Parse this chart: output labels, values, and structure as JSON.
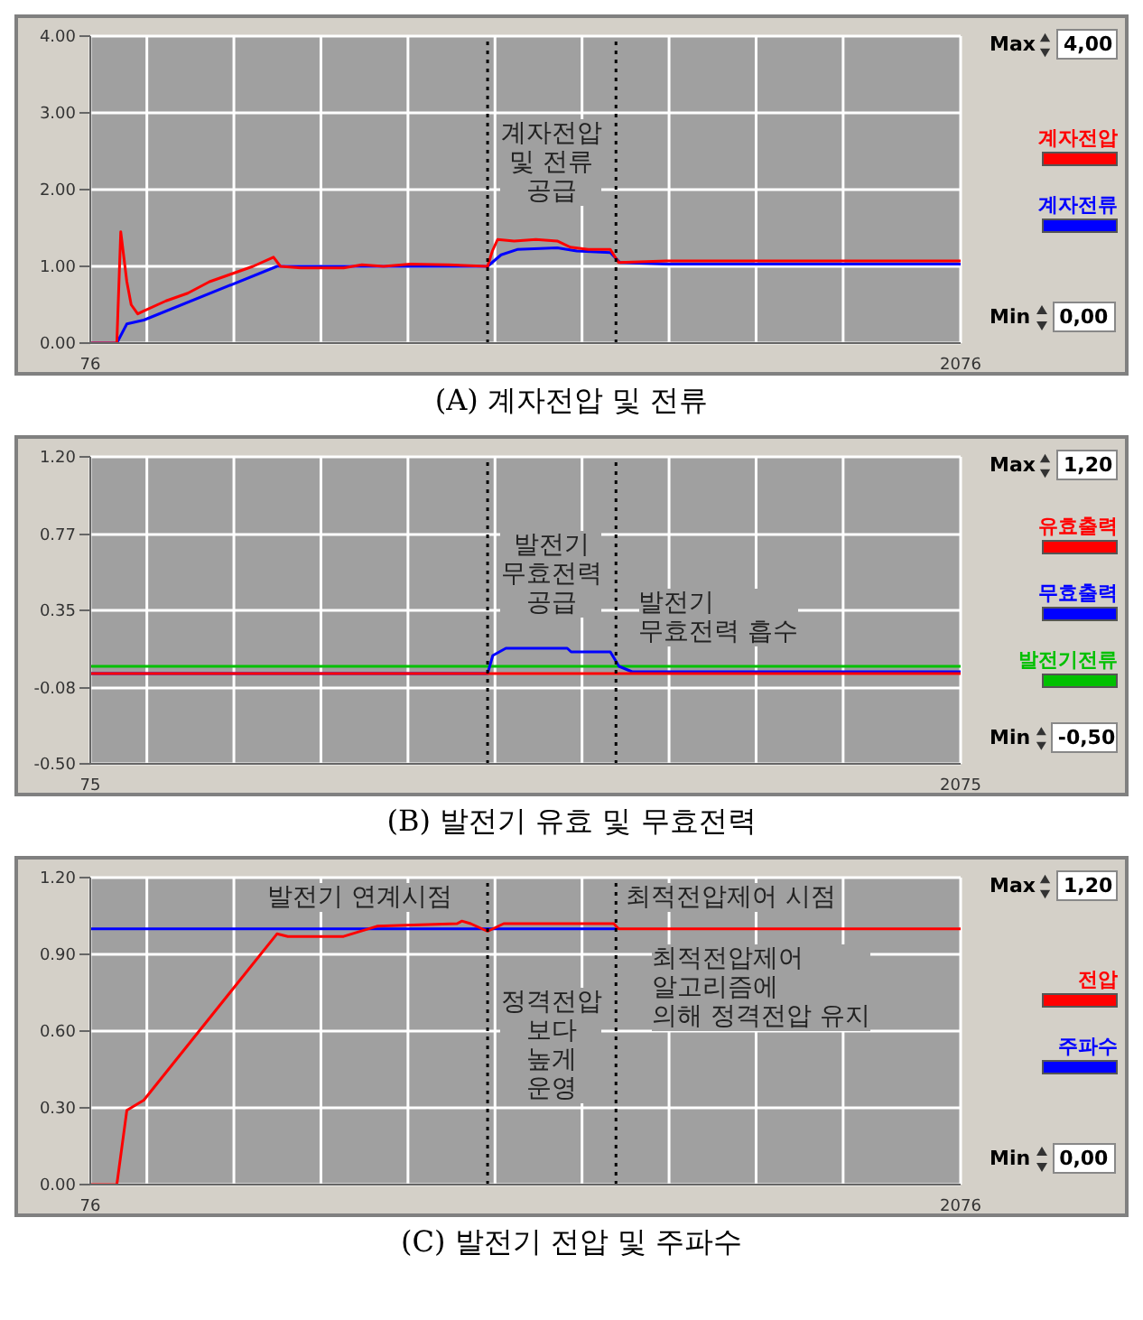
{
  "chart_data": [
    {
      "type": "line",
      "title": "(A) 계자전압 및 전류",
      "xlim": [
        76,
        2076
      ],
      "xticks": [
        76,
        {
          "value": 206,
          "label": null
        },
        {
          "value": 406,
          "label": null
        },
        {
          "value": 606,
          "label": null
        },
        {
          "value": 806,
          "label": null
        },
        {
          "value": 1006,
          "label": null
        },
        {
          "value": 1206,
          "label": null
        },
        {
          "value": 1406,
          "label": null
        },
        {
          "value": 1606,
          "label": null
        },
        {
          "value": 1806,
          "label": null
        },
        2076
      ],
      "ylim": [
        0,
        4
      ],
      "yticks": [
        {
          "value": 0,
          "label": "0.00"
        },
        {
          "value": 1,
          "label": "1.00"
        },
        {
          "value": 2,
          "label": "2.00"
        },
        {
          "value": 3,
          "label": "3.00"
        },
        {
          "value": 4,
          "label": "4.00"
        }
      ],
      "grid": true,
      "legend": "right",
      "series": [
        {
          "name": "계자전압",
          "color": "#ff0000",
          "x": [
            76,
            137,
            146,
            160,
            170,
            185,
            199,
            250,
            300,
            350,
            400,
            450,
            497,
            513,
            560,
            658,
            700,
            750,
            811,
            900,
            989,
            1000,
            1012,
            1050,
            1100,
            1149,
            1179,
            1220,
            1271,
            1290,
            1400,
            1600,
            1800,
            2076
          ],
          "values": [
            0,
            0,
            1.45,
            0.8,
            0.5,
            0.38,
            0.42,
            0.55,
            0.65,
            0.8,
            0.9,
            1.0,
            1.12,
            1.0,
            0.98,
            0.98,
            1.02,
            1.0,
            1.03,
            1.02,
            1.0,
            1.2,
            1.35,
            1.33,
            1.35,
            1.33,
            1.25,
            1.22,
            1.22,
            1.05,
            1.07,
            1.07,
            1.07,
            1.07
          ]
        },
        {
          "name": "계자전류",
          "color": "#0000ff",
          "x": [
            76,
            137,
            160,
            199,
            505,
            989,
            1020,
            1057,
            1149,
            1194,
            1271,
            1293,
            1400,
            2076
          ],
          "values": [
            0,
            0,
            0.25,
            0.3,
            1.0,
            1.0,
            1.15,
            1.22,
            1.24,
            1.2,
            1.18,
            1.05,
            1.03,
            1.03
          ]
        }
      ],
      "ref_lines": [
        {
          "axis": "x",
          "value": 989,
          "line_style": "dotted",
          "color": "#000000"
        },
        {
          "axis": "x",
          "value": 1284,
          "line_style": "dotted",
          "color": "#000000"
        }
      ],
      "annotations": [
        "Max",
        "4,00",
        "Min",
        "0,00",
        "계자전압\n및 전류\n공급"
      ]
    },
    {
      "type": "line",
      "title": "(B) 발전기 유효 및 무효전력",
      "xlim": [
        75,
        2075
      ],
      "xticks": [
        75,
        {
          "value": 205,
          "label": null
        },
        {
          "value": 405,
          "label": null
        },
        {
          "value": 605,
          "label": null
        },
        {
          "value": 805,
          "label": null
        },
        {
          "value": 1005,
          "label": null
        },
        {
          "value": 1205,
          "label": null
        },
        {
          "value": 1405,
          "label": null
        },
        {
          "value": 1605,
          "label": null
        },
        {
          "value": 1805,
          "label": null
        },
        2075
      ],
      "ylim": [
        -0.5,
        1.2
      ],
      "yticks": [
        {
          "value": -0.5,
          "label": "-0.50"
        },
        {
          "value": -0.08,
          "label": "-0.08"
        },
        {
          "value": 0.35,
          "label": "0.35"
        },
        {
          "value": 0.77,
          "label": "0.77"
        },
        {
          "value": 1.2,
          "label": "1.20"
        }
      ],
      "grid": true,
      "legend": "right",
      "series": [
        {
          "name": "유효출력",
          "color": "#ff0000",
          "x": [
            75,
            2075
          ],
          "values": [
            0,
            0
          ]
        },
        {
          "name": "무효출력",
          "color": "#0000ff",
          "x": [
            75,
            988,
            1000,
            1030,
            1171,
            1180,
            1270,
            1290,
            1320,
            2075
          ],
          "values": [
            0,
            0,
            0.1,
            0.14,
            0.14,
            0.12,
            0.12,
            0.04,
            0.01,
            0.01
          ]
        },
        {
          "name": "발전기전류",
          "color": "#00c000",
          "x": [
            75,
            2075
          ],
          "values": [
            0.04,
            0.04
          ]
        }
      ],
      "ref_lines": [
        {
          "axis": "x",
          "value": 988,
          "line_style": "dotted",
          "color": "#000000"
        },
        {
          "axis": "x",
          "value": 1283,
          "line_style": "dotted",
          "color": "#000000"
        }
      ],
      "annotations": [
        "Max",
        "1,20",
        "Min",
        "-0,50",
        "발전기\n무효전력\n공급",
        "발전기\n무효전력 흡수"
      ]
    },
    {
      "type": "line",
      "title": "(C) 발전기 전압 및 주파수",
      "xlim": [
        76,
        2076
      ],
      "xticks": [
        76,
        {
          "value": 206,
          "label": null
        },
        {
          "value": 406,
          "label": null
        },
        {
          "value": 606,
          "label": null
        },
        {
          "value": 806,
          "label": null
        },
        {
          "value": 1006,
          "label": null
        },
        {
          "value": 1206,
          "label": null
        },
        {
          "value": 1406,
          "label": null
        },
        {
          "value": 1606,
          "label": null
        },
        {
          "value": 1806,
          "label": null
        },
        2076
      ],
      "ylim": [
        0,
        1.2
      ],
      "yticks": [
        {
          "value": 0,
          "label": "0.00"
        },
        {
          "value": 0.3,
          "label": "0.30"
        },
        {
          "value": 0.6,
          "label": "0.60"
        },
        {
          "value": 0.9,
          "label": "0.90"
        },
        {
          "value": 1.2,
          "label": "1.20"
        }
      ],
      "grid": true,
      "legend": "right",
      "series": [
        {
          "name": "전압",
          "color": "#ff0000",
          "x": [
            76,
            137,
            160,
            199,
            505,
            530,
            658,
            735,
            919,
            930,
            950,
            989,
            1026,
            1279,
            1290,
            2076
          ],
          "values": [
            0,
            0,
            0.29,
            0.33,
            0.98,
            0.97,
            0.97,
            1.01,
            1.02,
            1.03,
            1.02,
            0.99,
            1.02,
            1.02,
            1.0,
            1.0
          ]
        },
        {
          "name": "주파수",
          "color": "#0000ff",
          "x": [
            76,
            1284
          ],
          "values": [
            1.0,
            1.0
          ]
        }
      ],
      "ref_lines": [
        {
          "axis": "x",
          "value": 989,
          "line_style": "dotted",
          "color": "#000000"
        },
        {
          "axis": "x",
          "value": 1284,
          "line_style": "dotted",
          "color": "#000000"
        }
      ],
      "annotations": [
        "Max",
        "1,20",
        "Min",
        "0,00",
        "발전기 연계시점",
        "최적전압제어 시점",
        "정격전압\n보다\n높게\n운영",
        "최적전압제어\n알고리즘에\n의해 정격전압 유지"
      ]
    }
  ]
}
